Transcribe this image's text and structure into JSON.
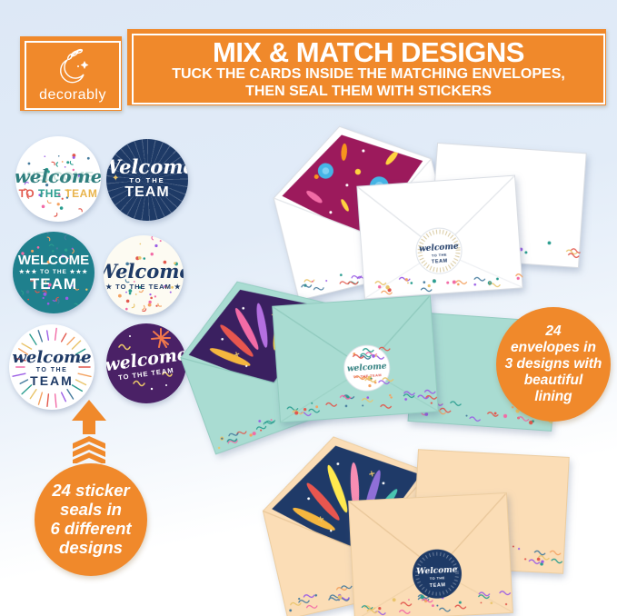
{
  "brand": {
    "name": "decorably",
    "icon": "moon-branch-icon"
  },
  "banner": {
    "title": "MIX & MATCH DESIGNS",
    "subtitle1": "TUCK THE CARDS INSIDE THE MATCHING ENVELOPES,",
    "subtitle2": "THEN SEAL THEM WITH STICKERS"
  },
  "stickers": {
    "confetti_white": {
      "ghost": "WELCOME",
      "script": "welcome",
      "word_to": "TO",
      "word_the": "THE",
      "word_team": "TEAM"
    },
    "navy_burst": {
      "script": "Welcome",
      "line2": "TO THE",
      "line3": "TEAM"
    },
    "teal_confetti": {
      "line1": "WELCOME",
      "line2": "★★★ TO THE ★★★",
      "line3": "TEAM"
    },
    "cream_streamers": {
      "script": "Welcome",
      "line2": "★ TO THE TEAM ★"
    },
    "white_rays": {
      "script": "welcome",
      "line2": "TO THE",
      "line3": "TEAM"
    },
    "purple_firework": {
      "script": "welcome",
      "line2": "TO THE TEAM"
    }
  },
  "envelope_sets": {
    "white_party": {
      "seal_script": "welcome",
      "seal_line2": "TO THE",
      "seal_line3": "TEAM"
    },
    "mint_fireworks": {
      "seal_script": "welcome",
      "seal_line2": "TO THE TEAM"
    },
    "peach_fireworks": {
      "seal_script": "Welcome",
      "seal_line2": "TO THE",
      "seal_line3": "TEAM"
    }
  },
  "badges": {
    "sticker_seals": {
      "line1": "24 sticker",
      "line2": "seals in",
      "line3": "6 different",
      "line4": "designs"
    },
    "envelopes": {
      "line1": "24",
      "line2": "envelopes in",
      "line3": "3 designs with",
      "line4": "beautiful",
      "line5": "lining"
    }
  },
  "colors": {
    "accent_orange": "#F0892B",
    "navy": "#1E3A66",
    "teal": "#1F808D",
    "deep_purple": "#4A2166",
    "magenta_lining": "#9C1A5C",
    "purple_lining": "#3A2060",
    "navy_lining": "#1F3A68",
    "mint": "#A9DCD2",
    "peach": "#FBDDB6",
    "white_envelope": "#FFFFFF"
  }
}
